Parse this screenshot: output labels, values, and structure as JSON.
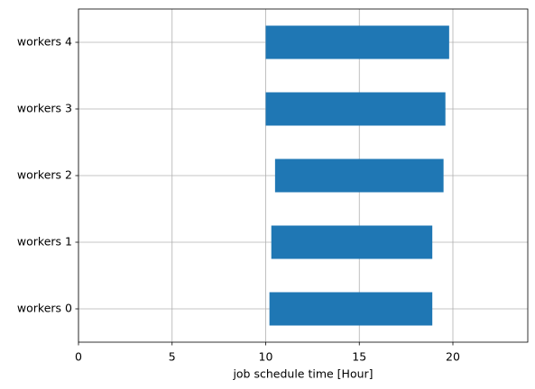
{
  "chart_data": {
    "type": "gantt",
    "x_label": "job schedule time [Hour]",
    "categories": [
      "workers 0",
      "workers 1",
      "workers 2",
      "workers 3",
      "workers 4"
    ],
    "starts": [
      10.2,
      10.3,
      10.5,
      10.0,
      10.0
    ],
    "ends": [
      18.9,
      18.9,
      19.5,
      19.6,
      19.8
    ],
    "color": "#1f77b4",
    "xlim": [
      0,
      24
    ],
    "xticks": [
      0,
      5,
      10,
      15,
      20
    ],
    "ylim": [
      -0.5,
      4.5
    ],
    "grid": true
  }
}
